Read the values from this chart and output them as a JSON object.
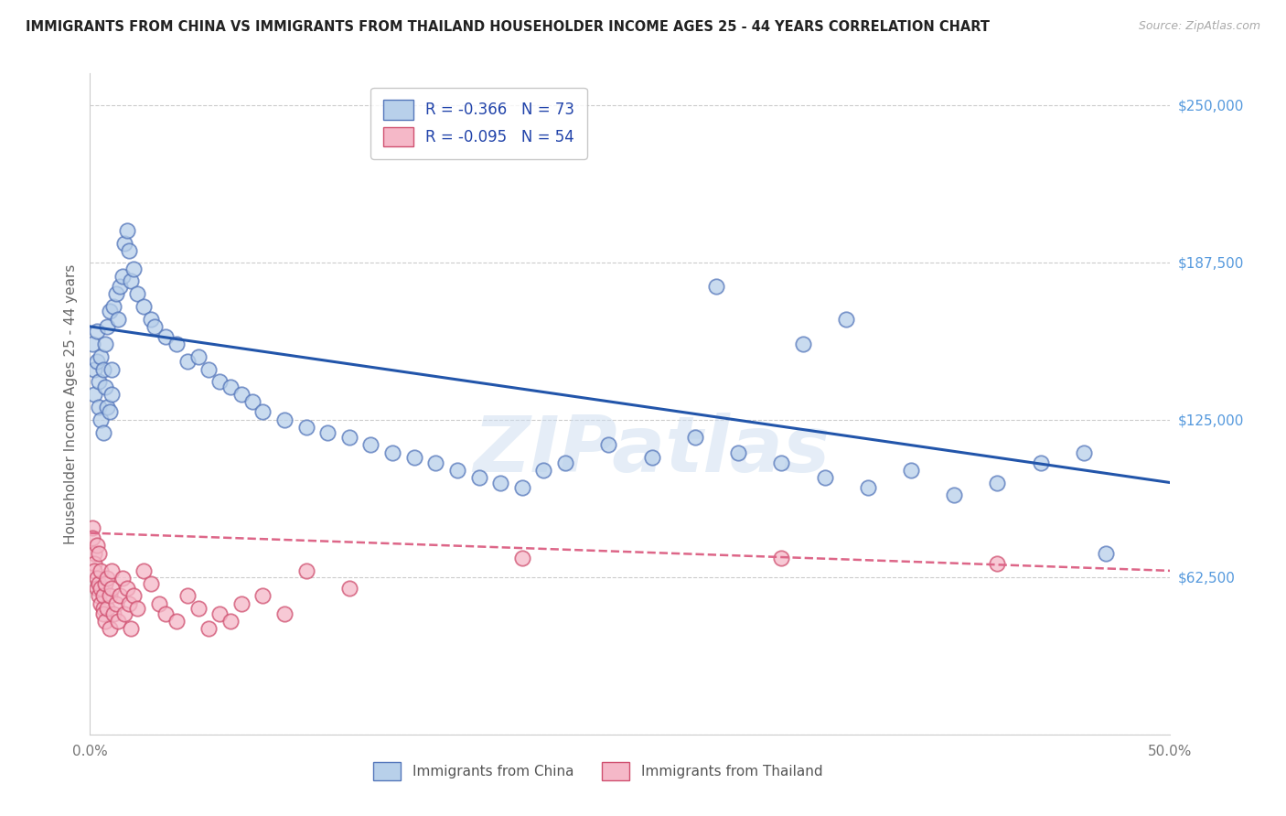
{
  "title": "IMMIGRANTS FROM CHINA VS IMMIGRANTS FROM THAILAND HOUSEHOLDER INCOME AGES 25 - 44 YEARS CORRELATION CHART",
  "source": "Source: ZipAtlas.com",
  "ylabel": "Householder Income Ages 25 - 44 years",
  "xlim": [
    0.0,
    0.5
  ],
  "ylim": [
    0,
    262500
  ],
  "yticks": [
    0,
    62500,
    125000,
    187500,
    250000
  ],
  "ytick_labels_right": [
    "",
    "$62,500",
    "$125,000",
    "$187,500",
    "$250,000"
  ],
  "xtick_vals": [
    0.0,
    0.1,
    0.2,
    0.3,
    0.4,
    0.5
  ],
  "xtick_labels": [
    "0.0%",
    "",
    "",
    "",
    "",
    "50.0%"
  ],
  "color_china_fill": "#b8d0ea",
  "color_china_edge": "#5577bb",
  "color_thailand_fill": "#f5b8c8",
  "color_thailand_edge": "#d05070",
  "color_china_line": "#2255aa",
  "color_thailand_line": "#dd6688",
  "watermark": "ZIPatlas",
  "r_china": -0.366,
  "n_china": 73,
  "r_thailand": -0.095,
  "n_thailand": 54,
  "china_x": [
    0.001,
    0.002,
    0.002,
    0.003,
    0.003,
    0.004,
    0.004,
    0.005,
    0.005,
    0.006,
    0.006,
    0.007,
    0.007,
    0.008,
    0.008,
    0.009,
    0.009,
    0.01,
    0.01,
    0.011,
    0.012,
    0.013,
    0.014,
    0.015,
    0.016,
    0.017,
    0.018,
    0.019,
    0.02,
    0.022,
    0.025,
    0.028,
    0.03,
    0.035,
    0.04,
    0.045,
    0.05,
    0.055,
    0.06,
    0.065,
    0.07,
    0.075,
    0.08,
    0.09,
    0.1,
    0.11,
    0.12,
    0.13,
    0.14,
    0.15,
    0.16,
    0.17,
    0.18,
    0.19,
    0.2,
    0.21,
    0.22,
    0.24,
    0.26,
    0.28,
    0.3,
    0.32,
    0.34,
    0.36,
    0.38,
    0.4,
    0.42,
    0.44,
    0.46,
    0.47,
    0.35,
    0.29,
    0.33
  ],
  "china_y": [
    155000,
    145000,
    135000,
    148000,
    160000,
    130000,
    140000,
    125000,
    150000,
    120000,
    145000,
    138000,
    155000,
    130000,
    162000,
    128000,
    168000,
    135000,
    145000,
    170000,
    175000,
    165000,
    178000,
    182000,
    195000,
    200000,
    192000,
    180000,
    185000,
    175000,
    170000,
    165000,
    162000,
    158000,
    155000,
    148000,
    150000,
    145000,
    140000,
    138000,
    135000,
    132000,
    128000,
    125000,
    122000,
    120000,
    118000,
    115000,
    112000,
    110000,
    108000,
    105000,
    102000,
    100000,
    98000,
    105000,
    108000,
    115000,
    110000,
    118000,
    112000,
    108000,
    102000,
    98000,
    105000,
    95000,
    100000,
    108000,
    112000,
    72000,
    165000,
    178000,
    155000
  ],
  "thailand_x": [
    0.001,
    0.001,
    0.002,
    0.002,
    0.002,
    0.003,
    0.003,
    0.003,
    0.004,
    0.004,
    0.004,
    0.005,
    0.005,
    0.005,
    0.006,
    0.006,
    0.006,
    0.007,
    0.007,
    0.008,
    0.008,
    0.009,
    0.009,
    0.01,
    0.01,
    0.011,
    0.012,
    0.013,
    0.014,
    0.015,
    0.016,
    0.017,
    0.018,
    0.019,
    0.02,
    0.022,
    0.025,
    0.028,
    0.032,
    0.035,
    0.04,
    0.045,
    0.05,
    0.055,
    0.06,
    0.065,
    0.07,
    0.08,
    0.09,
    0.1,
    0.12,
    0.2,
    0.32,
    0.42
  ],
  "thailand_y": [
    82000,
    78000,
    72000,
    68000,
    65000,
    62000,
    58000,
    75000,
    55000,
    60000,
    72000,
    52000,
    58000,
    65000,
    50000,
    48000,
    55000,
    60000,
    45000,
    62000,
    50000,
    55000,
    42000,
    58000,
    65000,
    48000,
    52000,
    45000,
    55000,
    62000,
    48000,
    58000,
    52000,
    42000,
    55000,
    50000,
    65000,
    60000,
    52000,
    48000,
    45000,
    55000,
    50000,
    42000,
    48000,
    45000,
    52000,
    55000,
    48000,
    65000,
    58000,
    70000,
    70000,
    68000
  ],
  "china_line_x0": 0.0,
  "china_line_y0": 162000,
  "china_line_x1": 0.5,
  "china_line_y1": 100000,
  "thailand_line_x0": 0.0,
  "thailand_line_y0": 80000,
  "thailand_line_x1": 0.5,
  "thailand_line_y1": 65000
}
